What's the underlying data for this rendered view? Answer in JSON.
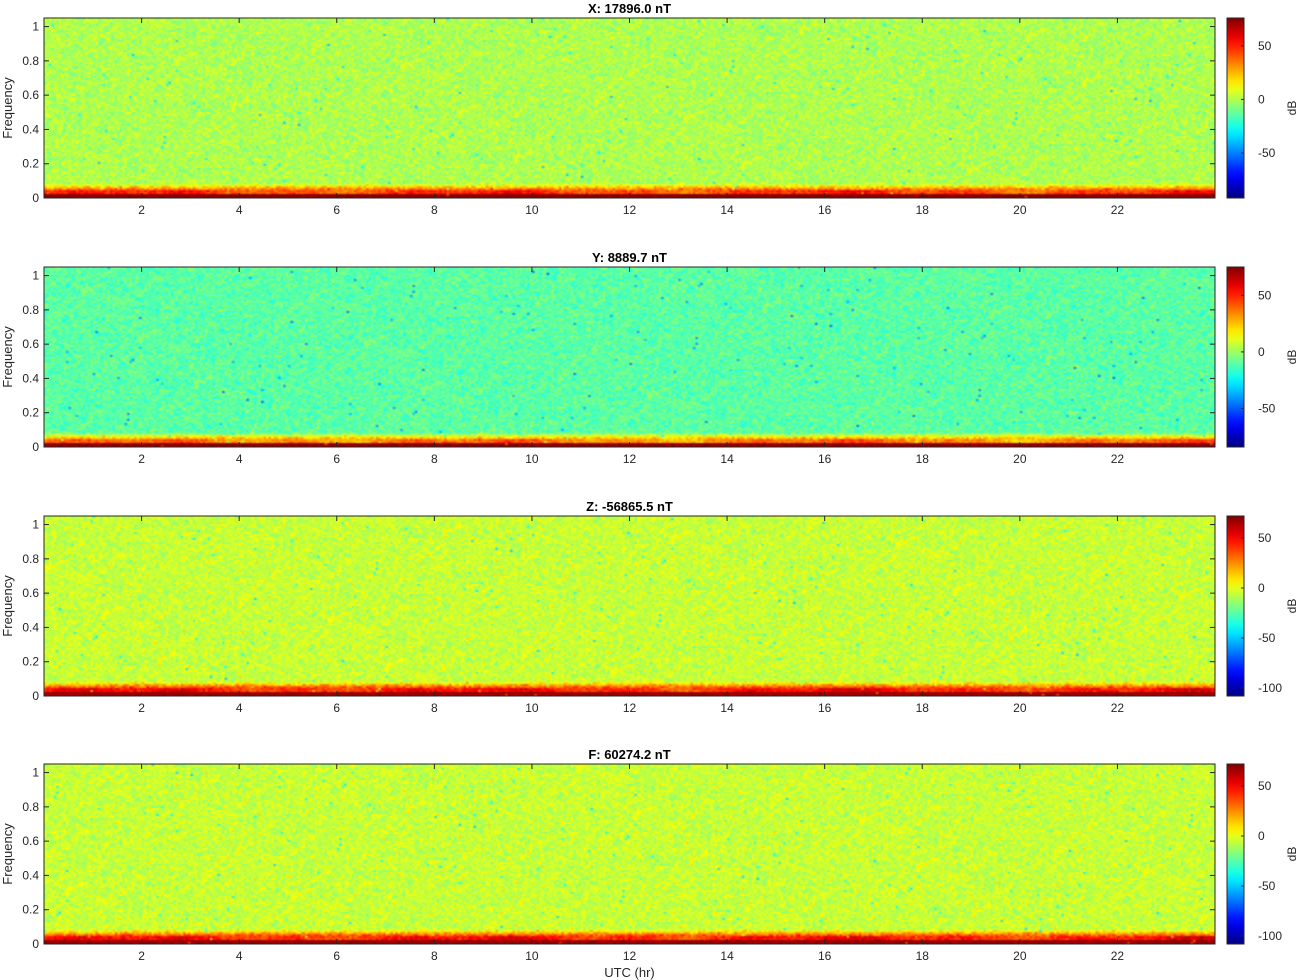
{
  "chart_data": [
    {
      "type": "heatmap",
      "title": "X: 17896.0 nT",
      "xlabel": "",
      "ylabel": "Frequency",
      "xlim": [
        0,
        24
      ],
      "ylim": [
        0,
        1.05
      ],
      "xticks": [
        2,
        4,
        6,
        8,
        10,
        12,
        14,
        16,
        18,
        20,
        22
      ],
      "yticks": [
        0,
        0.2,
        0.4,
        0.6,
        0.8,
        1
      ],
      "colorbar": {
        "label": "dB",
        "clim": [
          -92,
          76
        ],
        "ticks": [
          50,
          0,
          -50
        ]
      },
      "colormap": "jet",
      "background_level": 0,
      "low_band_level": 45,
      "dc_level": 75
    },
    {
      "type": "heatmap",
      "title": "Y: 8889.7 nT",
      "xlabel": "",
      "ylabel": "Frequency",
      "xlim": [
        0,
        24
      ],
      "ylim": [
        0,
        1.05
      ],
      "xticks": [
        2,
        4,
        6,
        8,
        10,
        12,
        14,
        16,
        18,
        20,
        22
      ],
      "yticks": [
        0,
        0.2,
        0.4,
        0.6,
        0.8,
        1
      ],
      "colorbar": {
        "label": "dB",
        "clim": [
          -84,
          75
        ],
        "ticks": [
          50,
          0,
          -50
        ]
      },
      "colormap": "jet",
      "background_level": -10,
      "low_band_level": 35,
      "dc_level": 72
    },
    {
      "type": "heatmap",
      "title": "Z: -56865.5 nT",
      "xlabel": "",
      "ylabel": "Frequency",
      "xlim": [
        0,
        24
      ],
      "ylim": [
        0,
        1.05
      ],
      "xticks": [
        2,
        4,
        6,
        8,
        10,
        12,
        14,
        16,
        18,
        20,
        22
      ],
      "yticks": [
        0,
        0.2,
        0.4,
        0.6,
        0.8,
        1
      ],
      "colorbar": {
        "label": "dB",
        "clim": [
          -108,
          72
        ],
        "ticks": [
          50,
          0,
          -50,
          -100
        ]
      },
      "colormap": "jet",
      "background_level": -5,
      "low_band_level": 45,
      "dc_level": 68
    },
    {
      "type": "heatmap",
      "title": "F: 60274.2 nT",
      "xlabel": "UTC (hr)",
      "ylabel": "Frequency",
      "xlim": [
        0,
        24
      ],
      "ylim": [
        0,
        1.05
      ],
      "xticks": [
        2,
        4,
        6,
        8,
        10,
        12,
        14,
        16,
        18,
        20,
        22
      ],
      "yticks": [
        0,
        0.2,
        0.4,
        0.6,
        0.8,
        1
      ],
      "colorbar": {
        "label": "dB",
        "clim": [
          -108,
          72
        ],
        "ticks": [
          50,
          0,
          -50,
          -100
        ]
      },
      "colormap": "jet",
      "background_level": -5,
      "low_band_level": 45,
      "dc_level": 68
    }
  ]
}
